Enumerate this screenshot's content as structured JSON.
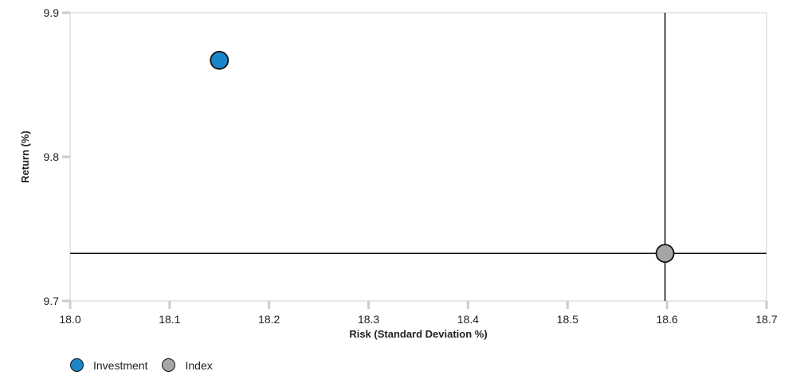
{
  "chart_data": {
    "type": "scatter",
    "title": "",
    "xlabel": "Risk (Standard Deviation %)",
    "ylabel": "Return (%)",
    "xlim": [
      18.0,
      18.7
    ],
    "ylim": [
      9.7,
      9.9
    ],
    "x_ticks": [
      "18.0",
      "18.1",
      "18.2",
      "18.3",
      "18.4",
      "18.5",
      "18.6",
      "18.7"
    ],
    "y_ticks": [
      "9.7",
      "9.8",
      "9.9"
    ],
    "grid": false,
    "legend_position": "bottom-left",
    "series": [
      {
        "name": "Investment",
        "color": "#1a85c8",
        "points": [
          {
            "x": 18.15,
            "y": 9.867
          }
        ]
      },
      {
        "name": "Index",
        "color": "#a6a6a6",
        "points": [
          {
            "x": 18.598,
            "y": 9.733
          }
        ],
        "crosshair": true
      }
    ]
  }
}
